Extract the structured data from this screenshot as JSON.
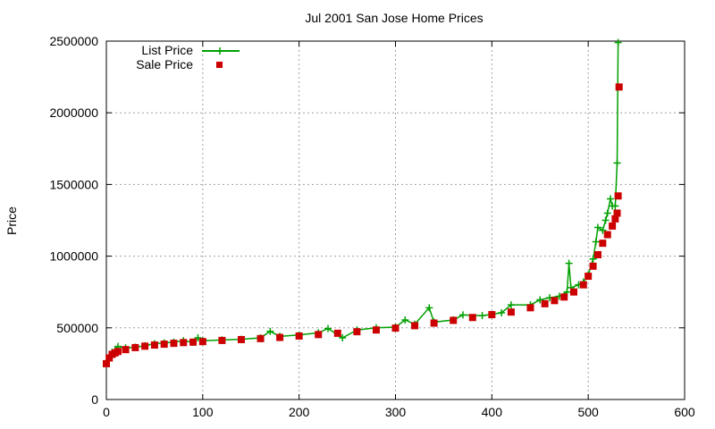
{
  "chart_data": {
    "type": "line",
    "title": "Jul 2001 San Jose Home Prices",
    "xlabel": "",
    "ylabel": "Price",
    "xlim": [
      0,
      600
    ],
    "ylim": [
      0,
      2500000
    ],
    "x_ticks": [
      0,
      100,
      200,
      300,
      400,
      500,
      600
    ],
    "y_ticks": [
      0,
      500000,
      1000000,
      1500000,
      2000000,
      2500000
    ],
    "grid": true,
    "legend_position": "top-left",
    "series": [
      {
        "name": "List Price",
        "style": "line-with-plus-markers",
        "color": "#00a000",
        "points": [
          [
            0,
            260000
          ],
          [
            3,
            295000
          ],
          [
            6,
            330000
          ],
          [
            9,
            345000
          ],
          [
            12,
            370000
          ],
          [
            20,
            360000
          ],
          [
            30,
            365000
          ],
          [
            40,
            375000
          ],
          [
            50,
            390000
          ],
          [
            60,
            395000
          ],
          [
            70,
            400000
          ],
          [
            80,
            410000
          ],
          [
            90,
            400000
          ],
          [
            95,
            430000
          ],
          [
            100,
            410000
          ],
          [
            120,
            415000
          ],
          [
            140,
            420000
          ],
          [
            160,
            430000
          ],
          [
            170,
            475000
          ],
          [
            180,
            440000
          ],
          [
            200,
            450000
          ],
          [
            220,
            465000
          ],
          [
            230,
            495000
          ],
          [
            245,
            430000
          ],
          [
            260,
            485000
          ],
          [
            280,
            500000
          ],
          [
            300,
            505000
          ],
          [
            310,
            555000
          ],
          [
            320,
            525000
          ],
          [
            335,
            640000
          ],
          [
            340,
            540000
          ],
          [
            360,
            555000
          ],
          [
            370,
            590000
          ],
          [
            390,
            585000
          ],
          [
            410,
            605000
          ],
          [
            420,
            660000
          ],
          [
            440,
            660000
          ],
          [
            450,
            695000
          ],
          [
            460,
            710000
          ],
          [
            470,
            720000
          ],
          [
            478,
            750000
          ],
          [
            480,
            950000
          ],
          [
            482,
            780000
          ],
          [
            490,
            800000
          ],
          [
            495,
            820000
          ],
          [
            500,
            870000
          ],
          [
            505,
            980000
          ],
          [
            508,
            1100000
          ],
          [
            510,
            1200000
          ],
          [
            515,
            1180000
          ],
          [
            518,
            1250000
          ],
          [
            520,
            1300000
          ],
          [
            523,
            1400000
          ],
          [
            525,
            1350000
          ],
          [
            528,
            1350000
          ],
          [
            530,
            1650000
          ],
          [
            531,
            2490000
          ]
        ]
      },
      {
        "name": "Sale Price",
        "style": "square-markers",
        "color": "#cc0000",
        "points": [
          [
            0,
            250000
          ],
          [
            3,
            290000
          ],
          [
            6,
            315000
          ],
          [
            9,
            325000
          ],
          [
            12,
            335000
          ],
          [
            20,
            348000
          ],
          [
            30,
            362000
          ],
          [
            40,
            372000
          ],
          [
            50,
            380000
          ],
          [
            60,
            386000
          ],
          [
            70,
            392000
          ],
          [
            80,
            397000
          ],
          [
            90,
            400000
          ],
          [
            100,
            404000
          ],
          [
            120,
            412000
          ],
          [
            140,
            418000
          ],
          [
            160,
            425000
          ],
          [
            180,
            433000
          ],
          [
            200,
            443000
          ],
          [
            220,
            453000
          ],
          [
            240,
            462000
          ],
          [
            260,
            473000
          ],
          [
            280,
            485000
          ],
          [
            300,
            498000
          ],
          [
            320,
            515000
          ],
          [
            340,
            533000
          ],
          [
            360,
            552000
          ],
          [
            380,
            572000
          ],
          [
            400,
            592000
          ],
          [
            420,
            610000
          ],
          [
            440,
            640000
          ],
          [
            455,
            668000
          ],
          [
            465,
            690000
          ],
          [
            475,
            715000
          ],
          [
            485,
            750000
          ],
          [
            495,
            800000
          ],
          [
            500,
            860000
          ],
          [
            505,
            930000
          ],
          [
            510,
            1010000
          ],
          [
            515,
            1090000
          ],
          [
            520,
            1150000
          ],
          [
            525,
            1210000
          ],
          [
            528,
            1260000
          ],
          [
            530,
            1300000
          ],
          [
            531,
            1420000
          ],
          [
            532,
            2180000
          ]
        ]
      }
    ]
  }
}
